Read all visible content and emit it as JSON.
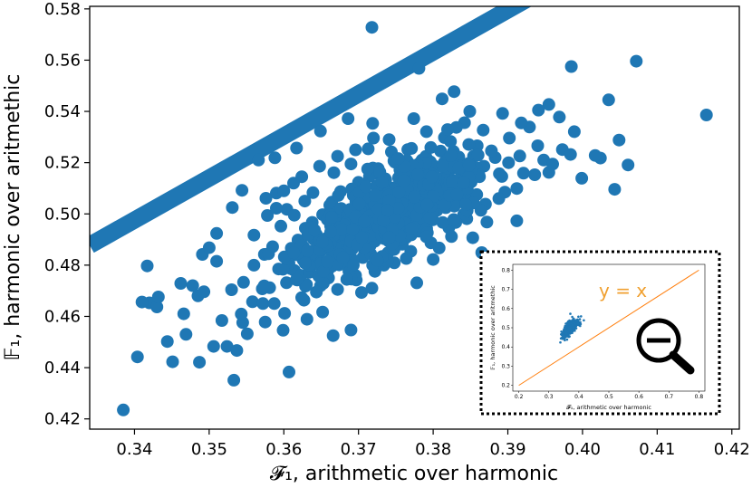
{
  "chart_data": {
    "type": "scatter",
    "title": "",
    "xlabel": "𝓕₁, arithmetic over harmonic",
    "ylabel": "𝔽₁, harmonic over aritmethic",
    "xlim": [
      0.334,
      0.421
    ],
    "ylim": [
      0.416,
      0.581
    ],
    "xticks": [
      0.34,
      0.35,
      0.36,
      0.37,
      0.38,
      0.39,
      0.4,
      0.41,
      0.42
    ],
    "xtick_labels": [
      "0.34",
      "0.35",
      "0.36",
      "0.37",
      "0.38",
      "0.39",
      "0.40",
      "0.41",
      "0.42"
    ],
    "yticks": [
      0.42,
      0.44,
      0.46,
      0.48,
      0.5,
      0.52,
      0.54,
      0.56,
      0.58
    ],
    "ytick_labels": [
      "0.42",
      "0.44",
      "0.46",
      "0.48",
      "0.50",
      "0.52",
      "0.54",
      "0.56",
      "0.58"
    ],
    "grid": false,
    "point_color": "#1f77b4",
    "fit_line": {
      "slope": 1.64,
      "intercept": -0.06,
      "color": "#1f77b4"
    },
    "points": [
      [
        0.3385,
        0.4235
      ],
      [
        0.3718,
        0.5728
      ],
      [
        0.3781,
        0.5568
      ],
      [
        0.4072,
        0.5596
      ],
      [
        0.4166,
        0.5386
      ],
      [
        0.3985,
        0.5575
      ],
      [
        0.4035,
        0.5445
      ],
      [
        0.3533,
        0.4351
      ],
      [
        0.3607,
        0.4383
      ],
      [
        0.3404,
        0.4442
      ],
      [
        0.3451,
        0.4423
      ],
      [
        0.3506,
        0.4483
      ],
      [
        0.3487,
        0.4421
      ],
      [
        0.342,
        0.4653
      ],
      [
        0.3417,
        0.4797
      ],
      [
        0.343,
        0.4637
      ],
      [
        0.3462,
        0.4729
      ],
      [
        0.3485,
        0.468
      ],
      [
        0.3491,
        0.4842
      ],
      [
        0.3493,
        0.4696
      ],
      [
        0.3517,
        0.4584
      ],
      [
        0.3524,
        0.4483
      ],
      [
        0.3537,
        0.4467
      ],
      [
        0.3545,
        0.4576
      ],
      [
        0.3551,
        0.4532
      ],
      [
        0.3558,
        0.4657
      ],
      [
        0.3575,
        0.4578
      ],
      [
        0.3599,
        0.4546
      ],
      [
        0.3631,
        0.4589
      ],
      [
        0.3666,
        0.4525
      ],
      [
        0.369,
        0.4547
      ],
      [
        0.3704,
        0.4693
      ],
      [
        0.3718,
        0.471
      ],
      [
        0.3778,
        0.4731
      ],
      [
        0.38,
        0.4822
      ],
      [
        0.3865,
        0.4849
      ],
      [
        0.3912,
        0.4973
      ],
      [
        0.3955,
        0.5162
      ],
      [
        0.3999,
        0.5139
      ],
      [
        0.4024,
        0.5218
      ],
      [
        0.4043,
        0.5096
      ],
      [
        0.4061,
        0.5191
      ],
      [
        0.4049,
        0.5288
      ],
      [
        0.4017,
        0.5228
      ],
      [
        0.3929,
        0.5339
      ],
      [
        0.3955,
        0.5427
      ],
      [
        0.3828,
        0.5477
      ],
      [
        0.3849,
        0.54
      ],
      [
        0.3812,
        0.5449
      ],
      [
        0.3774,
        0.5372
      ],
      [
        0.3719,
        0.5353
      ],
      [
        0.3686,
        0.5372
      ],
      [
        0.3649,
        0.5323
      ],
      [
        0.3617,
        0.5257
      ],
      [
        0.3588,
        0.5219
      ],
      [
        0.3566,
        0.521
      ],
      [
        0.3544,
        0.5092
      ],
      [
        0.3531,
        0.5025
      ],
      [
        0.351,
        0.4924
      ],
      [
        0.35,
        0.4868
      ],
      [
        0.351,
        0.4815
      ],
      [
        0.3478,
        0.472
      ],
      [
        0.3466,
        0.461
      ],
      [
        0.3432,
        0.4676
      ],
      [
        0.3444,
        0.4502
      ],
      [
        0.341,
        0.4656
      ],
      [
        0.3469,
        0.453
      ],
      [
        0.3543,
        0.4609
      ],
      [
        0.353,
        0.4704
      ],
      [
        0.3572,
        0.465
      ],
      [
        0.3601,
        0.4612
      ],
      [
        0.3627,
        0.4663
      ],
      [
        0.3652,
        0.4617
      ],
      [
        0.3618,
        0.4742
      ],
      [
        0.3593,
        0.4785
      ],
      [
        0.3574,
        0.4842
      ],
      [
        0.356,
        0.4917
      ],
      [
        0.3578,
        0.4994
      ],
      [
        0.359,
        0.5081
      ],
      [
        0.3613,
        0.512
      ],
      [
        0.3639,
        0.5083
      ],
      [
        0.3667,
        0.5161
      ],
      [
        0.369,
        0.5195
      ],
      [
        0.3713,
        0.5254
      ],
      [
        0.3741,
        0.529
      ],
      [
        0.3766,
        0.5251
      ],
      [
        0.3791,
        0.5321
      ],
      [
        0.3815,
        0.5298
      ],
      [
        0.3842,
        0.5356
      ],
      [
        0.3867,
        0.5327
      ],
      [
        0.3893,
        0.5392
      ],
      [
        0.3918,
        0.5355
      ],
      [
        0.3941,
        0.5405
      ],
      [
        0.3969,
        0.5378
      ],
      [
        0.3989,
        0.5321
      ],
      [
        0.3973,
        0.5251
      ],
      [
        0.3948,
        0.521
      ],
      [
        0.3921,
        0.5159
      ],
      [
        0.3896,
        0.5085
      ],
      [
        0.387,
        0.5038
      ],
      [
        0.3845,
        0.4981
      ],
      [
        0.3821,
        0.4946
      ],
      [
        0.3797,
        0.4887
      ],
      [
        0.377,
        0.4854
      ],
      [
        0.3748,
        0.4809
      ],
      [
        0.3722,
        0.4776
      ],
      [
        0.3697,
        0.4742
      ],
      [
        0.3672,
        0.4705
      ],
      [
        0.3649,
        0.4763
      ],
      [
        0.3626,
        0.482
      ],
      [
        0.364,
        0.4901
      ],
      [
        0.3664,
        0.4955
      ],
      [
        0.3688,
        0.5012
      ],
      [
        0.3712,
        0.5064
      ],
      [
        0.3736,
        0.5117
      ],
      [
        0.3761,
        0.5163
      ],
      [
        0.3785,
        0.521
      ],
      [
        0.381,
        0.5245
      ],
      [
        0.3834,
        0.5198
      ],
      [
        0.3859,
        0.5266
      ],
      [
        0.3883,
        0.522
      ],
      [
        0.3862,
        0.5145
      ],
      [
        0.3838,
        0.5087
      ],
      [
        0.3813,
        0.5042
      ],
      [
        0.3789,
        0.4992
      ],
      [
        0.3764,
        0.494
      ],
      [
        0.374,
        0.4895
      ],
      [
        0.3715,
        0.4846
      ],
      [
        0.3691,
        0.4862
      ],
      [
        0.3667,
        0.4879
      ],
      [
        0.3643,
        0.484
      ],
      [
        0.3619,
        0.4898
      ],
      [
        0.3596,
        0.4952
      ],
      [
        0.3604,
        0.5018
      ],
      [
        0.3628,
        0.505
      ],
      [
        0.3652,
        0.4997
      ],
      [
        0.3676,
        0.5087
      ],
      [
        0.37,
        0.5123
      ],
      [
        0.3724,
        0.5158
      ],
      [
        0.3748,
        0.521
      ],
      [
        0.3772,
        0.5067
      ],
      [
        0.3796,
        0.512
      ],
      [
        0.382,
        0.5156
      ],
      [
        0.3844,
        0.5105
      ],
      [
        0.3868,
        0.5186
      ],
      [
        0.3892,
        0.5146
      ],
      [
        0.3916,
        0.5226
      ],
      [
        0.394,
        0.5266
      ],
      [
        0.3902,
        0.5296
      ],
      [
        0.3878,
        0.5246
      ],
      [
        0.3854,
        0.5225
      ],
      [
        0.383,
        0.518
      ],
      [
        0.3806,
        0.5135
      ],
      [
        0.3782,
        0.5095
      ],
      [
        0.3758,
        0.5045
      ],
      [
        0.3734,
        0.5002
      ],
      [
        0.371,
        0.4958
      ],
      [
        0.3686,
        0.4928
      ],
      [
        0.3662,
        0.4895
      ],
      [
        0.3638,
        0.4967
      ],
      [
        0.3614,
        0.4995
      ],
      [
        0.359,
        0.5022
      ],
      [
        0.3576,
        0.5061
      ],
      [
        0.36,
        0.509
      ],
      [
        0.3624,
        0.5145
      ],
      [
        0.3648,
        0.5186
      ],
      [
        0.3672,
        0.5225
      ],
      [
        0.3696,
        0.525
      ],
      [
        0.372,
        0.5296
      ],
      [
        0.3744,
        0.5242
      ],
      [
        0.3768,
        0.5196
      ],
      [
        0.3792,
        0.5149
      ],
      [
        0.3816,
        0.5104
      ],
      [
        0.384,
        0.506
      ],
      [
        0.3864,
        0.5014
      ],
      [
        0.3888,
        0.506
      ],
      [
        0.3912,
        0.5099
      ],
      [
        0.3936,
        0.5153
      ],
      [
        0.396,
        0.5194
      ],
      [
        0.3984,
        0.5232
      ],
      [
        0.3696,
        0.476
      ],
      [
        0.3734,
        0.48
      ],
      [
        0.3756,
        0.4905
      ],
      [
        0.3707,
        0.49
      ],
      [
        0.3653,
        0.4868
      ],
      [
        0.361,
        0.4866
      ],
      [
        0.3585,
        0.4872
      ],
      [
        0.356,
        0.48
      ],
      [
        0.3546,
        0.4733
      ],
      [
        0.3581,
        0.4712
      ],
      [
        0.3629,
        0.4718
      ],
      [
        0.3674,
        0.4801
      ],
      [
        0.3719,
        0.48
      ],
      [
        0.3764,
        0.4826
      ],
      [
        0.3808,
        0.4867
      ],
      [
        0.3853,
        0.4907
      ],
      [
        0.3872,
        0.4968
      ],
      [
        0.3851,
        0.5063
      ],
      [
        0.382,
        0.5073
      ],
      [
        0.3783,
        0.5021
      ]
    ],
    "inset": {
      "xlim": [
        0.18,
        0.82
      ],
      "ylim": [
        0.17,
        0.83
      ],
      "ticks": [
        0.2,
        0.3,
        0.4,
        0.5,
        0.6,
        0.7,
        0.8
      ],
      "tick_labels": [
        "0.2",
        "0.3",
        "0.4",
        "0.5",
        "0.6",
        "0.7",
        "0.8"
      ],
      "xlabel": "𝓕₁, arithmetic over harmonic",
      "ylabel": "𝔽₁, harmonic over aritmethic",
      "annotation": "y = x",
      "line_color": "#ff7f0e",
      "icon": "zoom-out-icon"
    }
  }
}
